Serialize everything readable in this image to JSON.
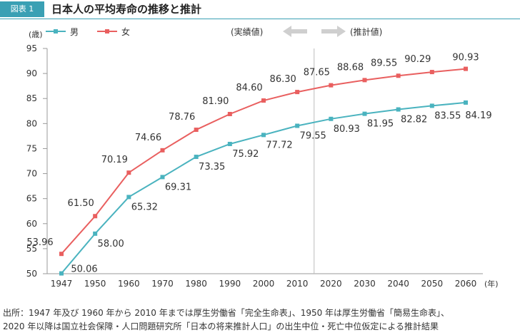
{
  "figure": {
    "badge": "図表 1",
    "title": "日本人の平均寿命の推移と推計",
    "badge_color": "#3aa0b4"
  },
  "chart_data": {
    "type": "line",
    "categories": [
      "1947",
      "1950",
      "1960",
      "1970",
      "1980",
      "1990",
      "2000",
      "2010",
      "2020",
      "2030",
      "2040",
      "2050",
      "2060"
    ],
    "series": [
      {
        "name": "男",
        "color": "#4ab3bf",
        "values": [
          50.06,
          58.0,
          65.32,
          69.31,
          73.35,
          75.92,
          77.72,
          79.55,
          80.93,
          81.95,
          82.82,
          83.55,
          84.19
        ],
        "labels": [
          "50.06",
          "58.00",
          "65.32",
          "69.31",
          "73.35",
          "75.92",
          "77.72",
          "79.55",
          "80.93",
          "81.95",
          "82.82",
          "83.55",
          "84.19"
        ]
      },
      {
        "name": "女",
        "color": "#e95f5f",
        "values": [
          53.96,
          61.5,
          70.19,
          74.66,
          78.76,
          81.9,
          84.6,
          86.3,
          87.65,
          88.68,
          89.55,
          90.29,
          90.93
        ],
        "labels": [
          "53.96",
          "61.50",
          "70.19",
          "74.66",
          "78.76",
          "81.90",
          "84.60",
          "86.30",
          "87.65",
          "88.68",
          "89.55",
          "90.29",
          "90.93"
        ]
      }
    ],
    "ylabel": "(歳)",
    "xlabel": "(年)",
    "ylim": [
      50,
      95
    ],
    "yticks": [
      "50",
      "55",
      "60",
      "65",
      "70",
      "75",
      "80",
      "85",
      "90",
      "95"
    ],
    "grid": false,
    "legend_position": "top-left",
    "divider_between": [
      "2010",
      "2020"
    ],
    "annotations": {
      "actual": "(実績値)",
      "projected": "(推計値)"
    }
  },
  "source_lines": [
    "出所：1947 年及び 1960 年から 2010 年までは厚生労働省「完全生命表」、1950 年は厚生労働省「簡易生命表」、",
    "2020 年以降は国立社会保障・人口問題研究所「日本の将来推計人口」の出生中位・死亡中位仮定による推計結果"
  ]
}
